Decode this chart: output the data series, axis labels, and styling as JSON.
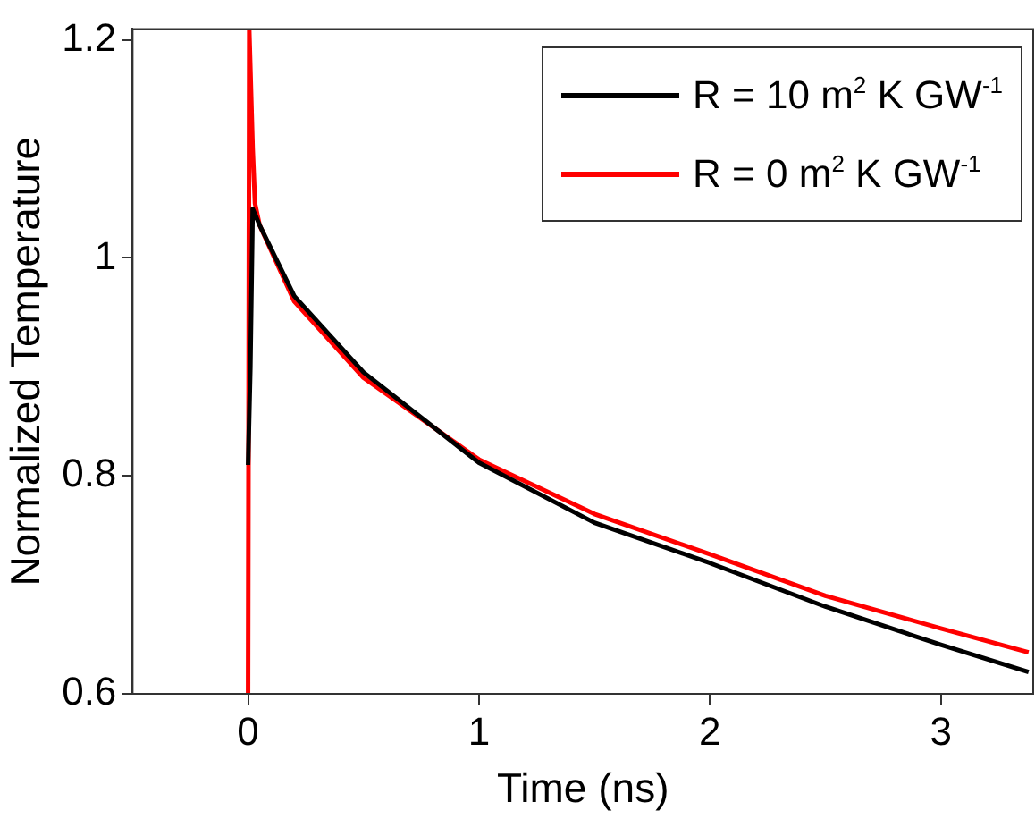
{
  "chart_data": {
    "type": "line",
    "xlabel": "Time (ns)",
    "ylabel": "Normalized Temperature",
    "xlim": [
      -0.5,
      3.4
    ],
    "xticks": [
      0,
      1,
      2,
      3
    ],
    "ylim": [
      0.6,
      1.21
    ],
    "yticks": [
      0.6,
      0.8,
      1,
      1.2
    ],
    "grid": false,
    "legend": "top right",
    "marker": "none",
    "line_style": "solid",
    "series": [
      {
        "name": "R = 10 m$^{2}$ K GW$^{-1}$",
        "color": "#000000",
        "x": [
          0,
          0.01,
          0.02,
          0.05,
          0.2,
          0.5,
          1,
          1.5,
          2,
          2.5,
          3,
          3.38
        ],
        "values": [
          0.81,
          0.9,
          1.045,
          1.03,
          0.965,
          0.895,
          0.812,
          0.757,
          0.72,
          0.68,
          0.645,
          0.62
        ]
      },
      {
        "name": "R = 0 m$^{2}$ K GW$^{-1}$",
        "color": "#ff0000",
        "x": [
          0,
          0.005,
          0.02,
          0.03,
          0.05,
          0.2,
          0.5,
          1,
          1.5,
          2,
          2.5,
          3,
          3.38
        ],
        "values": [
          0.6,
          1.21,
          1.1,
          1.05,
          1.03,
          0.96,
          0.89,
          0.815,
          0.765,
          0.728,
          0.69,
          0.66,
          0.638
        ]
      }
    ]
  }
}
